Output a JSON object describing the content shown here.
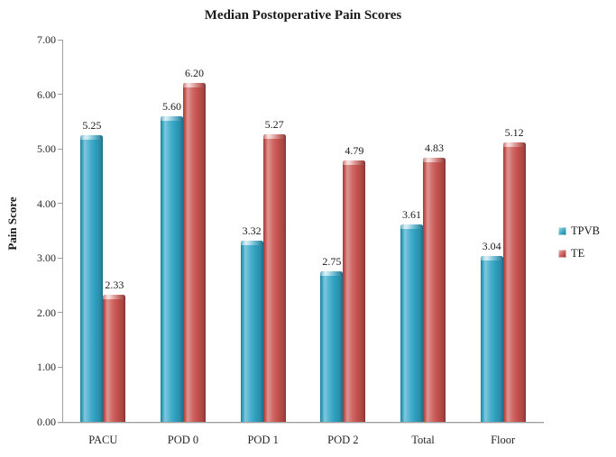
{
  "title": "Median Postoperative Pain Scores",
  "chart_data": {
    "type": "bar",
    "title": "Median Postoperative Pain Scores",
    "xlabel": "",
    "ylabel": "Pain Score",
    "categories": [
      "PACU",
      "POD 0",
      "POD 1",
      "POD 2",
      "Total",
      "Floor"
    ],
    "series": [
      {
        "name": "TPVB",
        "color": "#31A5C6",
        "values": [
          5.25,
          5.6,
          3.32,
          2.75,
          3.61,
          3.04
        ]
      },
      {
        "name": "TE",
        "color": "#C9534F",
        "values": [
          2.33,
          6.2,
          5.27,
          4.79,
          4.83,
          5.12
        ]
      }
    ],
    "ylim": [
      0,
      7
    ],
    "ytick_step": 1,
    "ytick_labels": [
      "0.00",
      "1.00",
      "2.00",
      "3.00",
      "4.00",
      "5.00",
      "6.00",
      "7.00"
    ],
    "value_label_format": "2-decimals",
    "grid": false,
    "legend_position": "right",
    "bar_style": "3d-bevel"
  },
  "legend": {
    "items": [
      {
        "label": "TPVB",
        "color": "#31A5C6"
      },
      {
        "label": "TE",
        "color": "#C9534F"
      }
    ]
  }
}
